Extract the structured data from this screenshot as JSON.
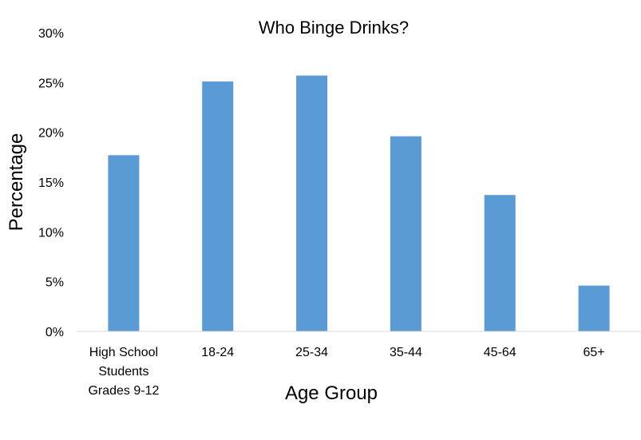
{
  "chart_data": {
    "type": "bar",
    "title": "Who Binge Drinks?",
    "xlabel": "Age Group",
    "ylabel": "Percentage",
    "categories": [
      "High School Students Grades 9-12",
      "18-24",
      "25-34",
      "35-44",
      "45-64",
      "65+"
    ],
    "category_label_lines": [
      [
        "High School",
        "Students",
        "Grades 9-12"
      ],
      [
        "18-24"
      ],
      [
        "25-34"
      ],
      [
        "35-44"
      ],
      [
        "45-64"
      ],
      [
        "65+"
      ]
    ],
    "values": [
      17.7,
      25.1,
      25.7,
      19.6,
      13.7,
      4.6
    ],
    "ylim": [
      0,
      30
    ],
    "yticks": [
      0,
      5,
      10,
      15,
      20,
      25,
      30
    ],
    "ytick_labels": [
      "0%",
      "5%",
      "10%",
      "15%",
      "20%",
      "25%",
      "30%"
    ],
    "grid": false,
    "legend": "none",
    "bar_color": "#5b9bd5",
    "axis_color": "#d9d9d9"
  }
}
